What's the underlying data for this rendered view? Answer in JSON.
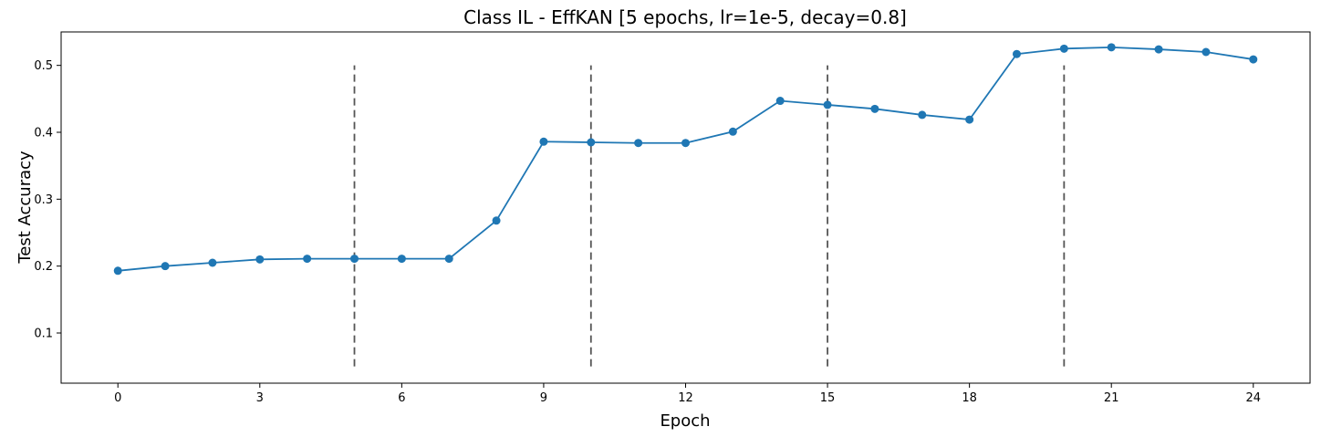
{
  "chart_data": {
    "type": "line",
    "title": "Class IL - EffKAN [5 epochs, lr=1e-5, decay=0.8]",
    "xlabel": "Epoch",
    "ylabel": "Test Accuracy",
    "xlim": [
      -1.2,
      25.2
    ],
    "ylim": [
      0.025,
      0.55
    ],
    "xticks": [
      0,
      3,
      6,
      9,
      12,
      15,
      18,
      21,
      24
    ],
    "yticks": [
      0.1,
      0.2,
      0.3,
      0.4,
      0.5
    ],
    "ytick_labels": [
      "0.1",
      "0.2",
      "0.3",
      "0.4",
      "0.5"
    ],
    "grid": false,
    "series": [
      {
        "color": "#1f77b4",
        "x": [
          0,
          1,
          2,
          3,
          4,
          5,
          6,
          7,
          8,
          9,
          10,
          11,
          12,
          13,
          14,
          15,
          16,
          17,
          18,
          19,
          20,
          21,
          22,
          23,
          24
        ],
        "y": [
          0.193,
          0.2,
          0.205,
          0.21,
          0.211,
          0.211,
          0.211,
          0.211,
          0.268,
          0.386,
          0.385,
          0.384,
          0.384,
          0.401,
          0.447,
          0.441,
          0.435,
          0.426,
          0.419,
          0.517,
          0.525,
          0.527,
          0.524,
          0.52,
          0.509
        ]
      }
    ],
    "vlines": {
      "x": [
        5,
        10,
        15,
        20
      ],
      "ymin": 0.05,
      "ymax": 0.5,
      "color": "#555555",
      "style": "dashed"
    }
  }
}
